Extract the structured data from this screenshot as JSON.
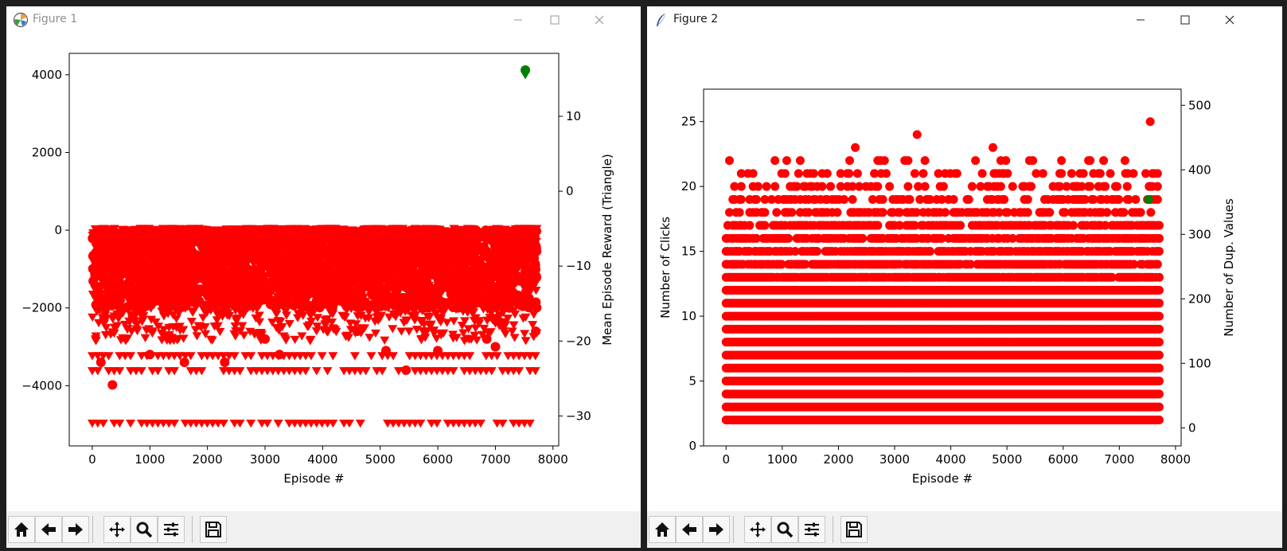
{
  "windows": [
    {
      "title": "Figure 1"
    },
    {
      "title": "Figure 2"
    }
  ],
  "toolbar_icons": [
    "home-icon",
    "back-arrow-icon",
    "forward-arrow-icon",
    "pan-icon",
    "zoom-icon",
    "configure-subplots-icon",
    "save-icon"
  ],
  "chart_data": [
    {
      "type": "scatter",
      "title": "",
      "xlabel": "Episode #",
      "ylabel": "",
      "ylabel_right": "Mean Episode Reward (Triangle)",
      "xlim": [
        -400,
        8100
      ],
      "ylim": [
        -5550,
        4550
      ],
      "ylim_right": [
        -34,
        18.4
      ],
      "xticks": [
        0,
        1000,
        2000,
        3000,
        4000,
        5000,
        6000,
        7000,
        8000
      ],
      "yticks": [
        -4000,
        -2000,
        0,
        2000,
        4000
      ],
      "yticks_right": [
        -30,
        -20,
        -10,
        0,
        10
      ],
      "x_max_episode": 7720,
      "grid": false,
      "colors": {
        "series": "#ff0000",
        "highlight": "#008000"
      },
      "series": [
        {
          "marker": "circle",
          "axis": "left",
          "dense_band": [
            -2000,
            0
          ],
          "outliers": [
            [
              350,
              -3980
            ],
            [
              150,
              -3400
            ],
            [
              1000,
              -3200
            ],
            [
              1600,
              -3400
            ],
            [
              2300,
              -3400
            ],
            [
              3250,
              -3200
            ],
            [
              5100,
              -3100
            ],
            [
              5450,
              -3600
            ],
            [
              6000,
              -3100
            ],
            [
              7000,
              -3000
            ],
            [
              6850,
              -2800
            ],
            [
              3000,
              -2800
            ],
            [
              4600,
              -2600
            ],
            [
              7700,
              -2600
            ],
            [
              200,
              -2300
            ],
            [
              700,
              -2200
            ]
          ],
          "highlight": [
            7520,
            4120
          ]
        },
        {
          "marker": "triangle",
          "axis": "right",
          "dense_band": [
            -20,
            -5
          ],
          "rows": [
            -22,
            -24,
            -31
          ],
          "highlight": [
            7520,
            15.5
          ]
        }
      ]
    },
    {
      "type": "scatter",
      "title": "",
      "xlabel": "Episode #",
      "ylabel": "Number of Clicks",
      "ylabel_right": "Number of Dup. Values",
      "xlim": [
        -400,
        8100
      ],
      "ylim": [
        0,
        27.5
      ],
      "ylim_right": [
        -28,
        525
      ],
      "xticks": [
        0,
        1000,
        2000,
        3000,
        4000,
        5000,
        6000,
        7000,
        8000
      ],
      "yticks": [
        0,
        5,
        10,
        15,
        20,
        25
      ],
      "yticks_right": [
        0,
        100,
        200,
        300,
        400,
        500
      ],
      "x_max_episode": 7720,
      "grid": false,
      "colors": {
        "series": "#ff0000",
        "highlight": "#008000"
      },
      "series": [
        {
          "marker": "circle",
          "axis": "left",
          "full_rows": [
            2,
            3,
            4,
            5,
            6,
            7,
            8,
            9,
            10,
            11,
            12
          ],
          "partial_rows": [
            13,
            14,
            15,
            16,
            17,
            18,
            19,
            20,
            21,
            22
          ],
          "outliers": [
            [
              3400,
              24
            ],
            [
              2300,
              23
            ],
            [
              4750,
              23
            ],
            [
              2200,
              22
            ],
            [
              2750,
              22
            ],
            [
              7100,
              22
            ],
            [
              7550,
              25
            ],
            [
              4800,
              21
            ],
            [
              7150,
              21
            ],
            [
              7250,
              21
            ]
          ],
          "highlight": [
            7520,
            19
          ]
        }
      ]
    }
  ]
}
